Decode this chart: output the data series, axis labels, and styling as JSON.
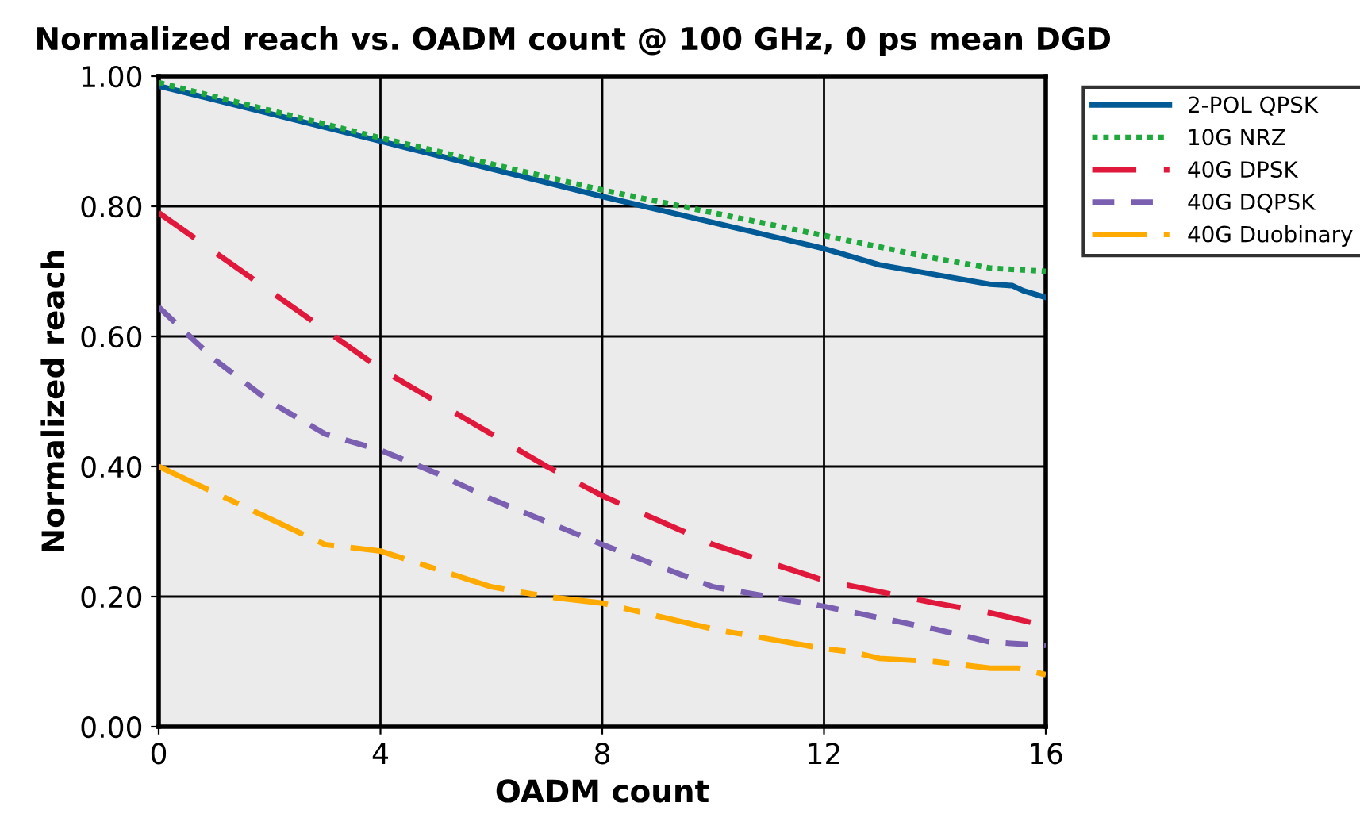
{
  "chart_data": {
    "type": "line",
    "title": "Normalized reach vs. OADM count @ 100 GHz, 0 ps mean DGD",
    "xlabel": "OADM count",
    "ylabel": "Normalized reach",
    "xlim": [
      0,
      16
    ],
    "ylim": [
      0,
      1
    ],
    "xticks": [
      0,
      4,
      8,
      12,
      16
    ],
    "yticks": [
      {
        "value": 0,
        "label": "0.00"
      },
      {
        "value": 0.2,
        "label": "0.20"
      },
      {
        "value": 0.4,
        "label": "0.40"
      },
      {
        "value": 0.6,
        "label": "0.60"
      },
      {
        "value": 0.8,
        "label": "0.80"
      },
      {
        "value": 1,
        "label": "1.00"
      }
    ],
    "grid": true,
    "legend": "top right",
    "marker": "none",
    "series": [
      {
        "name": "2-POL QPSK",
        "color": "#005a96",
        "line_style": "solid",
        "x": [
          0,
          4,
          8,
          12,
          13,
          14,
          15,
          15.4,
          15.6,
          16
        ],
        "values": [
          0.985,
          0.9,
          0.815,
          0.735,
          0.71,
          0.695,
          0.68,
          0.678,
          0.67,
          0.66
        ]
      },
      {
        "name": "10G NRZ",
        "color": "#1fa83c",
        "line_style": "dotted",
        "x": [
          0,
          4,
          8,
          12,
          14,
          15,
          16
        ],
        "values": [
          0.99,
          0.905,
          0.825,
          0.755,
          0.72,
          0.705,
          0.7
        ]
      },
      {
        "name": "40G DPSK",
        "color": "#e0193c",
        "line_style": "dashed",
        "x": [
          0,
          2,
          4,
          6,
          7,
          8,
          10,
          12,
          14,
          15,
          16
        ],
        "values": [
          0.79,
          0.67,
          0.55,
          0.45,
          0.4,
          0.355,
          0.28,
          0.225,
          0.19,
          0.175,
          0.155
        ]
      },
      {
        "name": "40G DQPSK",
        "color": "#7b5fb0",
        "line_style": "dashed",
        "x": [
          0,
          1,
          2,
          3,
          4,
          5,
          6,
          8,
          10,
          12,
          14,
          15,
          16
        ],
        "values": [
          0.645,
          0.565,
          0.5,
          0.45,
          0.425,
          0.39,
          0.35,
          0.28,
          0.215,
          0.185,
          0.15,
          0.13,
          0.125
        ]
      },
      {
        "name": "40G Duobinary",
        "color": "#ffaa00",
        "line_style": "dashdot",
        "x": [
          0,
          2,
          3,
          4,
          6,
          7,
          8,
          10,
          12,
          12.5,
          13,
          14,
          15,
          15.5,
          16
        ],
        "values": [
          0.4,
          0.32,
          0.28,
          0.27,
          0.215,
          0.2,
          0.19,
          0.15,
          0.12,
          0.115,
          0.105,
          0.1,
          0.09,
          0.09,
          0.08
        ]
      }
    ]
  }
}
